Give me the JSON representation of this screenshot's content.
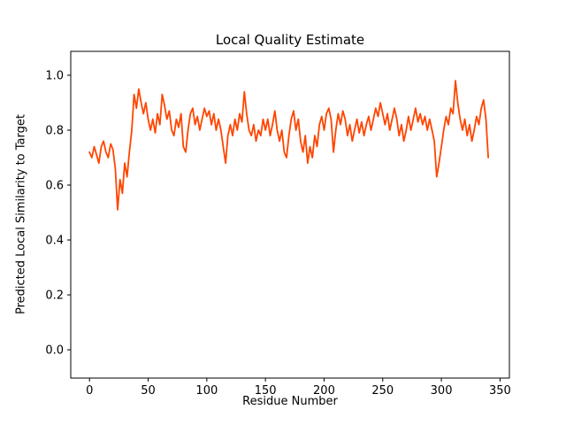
{
  "chart_data": {
    "type": "line",
    "title": "Local Quality Estimate",
    "xlabel": "Residue Number",
    "ylabel": "Predicted Local Similarity to Target",
    "line_color": "#FF4500",
    "line_width": 1.8,
    "axis_color": "#000000",
    "background": "#ffffff",
    "grid": false,
    "legend": "none",
    "xlim": [
      -16,
      358
    ],
    "ylim": [
      -0.103,
      1.087
    ],
    "x_ticks": [
      0,
      50,
      100,
      150,
      200,
      250,
      300,
      350
    ],
    "x_tick_labels": [
      "0",
      "50",
      "100",
      "150",
      "200",
      "250",
      "300",
      "350"
    ],
    "y_ticks": [
      0.0,
      0.2,
      0.4,
      0.6,
      0.8,
      1.0
    ],
    "y_tick_labels": [
      "0.0",
      "0.2",
      "0.4",
      "0.6",
      "0.8",
      "1.0"
    ],
    "x_start": 0,
    "x_step": 2,
    "values": [
      0.72,
      0.7,
      0.74,
      0.71,
      0.68,
      0.74,
      0.76,
      0.72,
      0.7,
      0.75,
      0.73,
      0.66,
      0.51,
      0.62,
      0.57,
      0.68,
      0.63,
      0.72,
      0.8,
      0.93,
      0.88,
      0.95,
      0.9,
      0.86,
      0.9,
      0.84,
      0.8,
      0.84,
      0.79,
      0.86,
      0.82,
      0.93,
      0.89,
      0.84,
      0.87,
      0.8,
      0.78,
      0.84,
      0.81,
      0.86,
      0.74,
      0.72,
      0.8,
      0.86,
      0.88,
      0.82,
      0.85,
      0.8,
      0.84,
      0.88,
      0.85,
      0.87,
      0.82,
      0.86,
      0.8,
      0.84,
      0.8,
      0.74,
      0.68,
      0.78,
      0.82,
      0.78,
      0.84,
      0.8,
      0.86,
      0.83,
      0.94,
      0.86,
      0.8,
      0.78,
      0.82,
      0.76,
      0.8,
      0.78,
      0.84,
      0.8,
      0.84,
      0.78,
      0.82,
      0.87,
      0.8,
      0.76,
      0.8,
      0.72,
      0.7,
      0.78,
      0.84,
      0.87,
      0.8,
      0.84,
      0.76,
      0.72,
      0.78,
      0.68,
      0.74,
      0.7,
      0.78,
      0.74,
      0.82,
      0.85,
      0.8,
      0.86,
      0.88,
      0.84,
      0.72,
      0.8,
      0.86,
      0.82,
      0.87,
      0.84,
      0.78,
      0.82,
      0.76,
      0.8,
      0.84,
      0.79,
      0.83,
      0.78,
      0.82,
      0.85,
      0.8,
      0.84,
      0.88,
      0.85,
      0.9,
      0.86,
      0.82,
      0.86,
      0.8,
      0.84,
      0.88,
      0.84,
      0.78,
      0.82,
      0.76,
      0.8,
      0.85,
      0.8,
      0.84,
      0.88,
      0.83,
      0.86,
      0.82,
      0.85,
      0.8,
      0.84,
      0.8,
      0.76,
      0.63,
      0.68,
      0.74,
      0.8,
      0.85,
      0.82,
      0.88,
      0.86,
      0.98,
      0.9,
      0.84,
      0.8,
      0.84,
      0.78,
      0.82,
      0.76,
      0.8,
      0.85,
      0.82,
      0.88,
      0.91,
      0.84,
      0.7
    ]
  }
}
